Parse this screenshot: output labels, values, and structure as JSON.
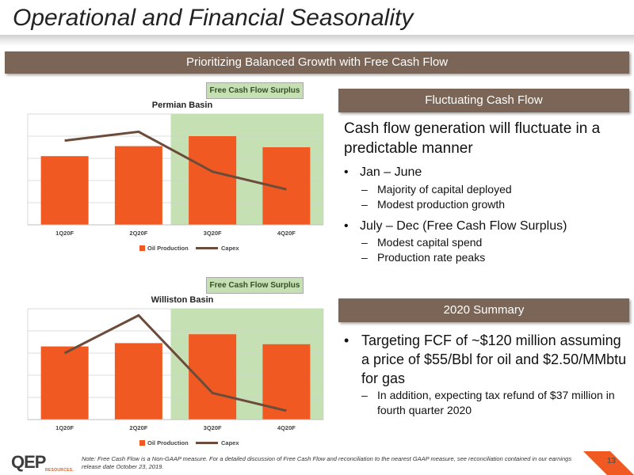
{
  "title": "Operational and Financial Seasonality",
  "banner": "Prioritizing Balanced Growth with Free Cash Flow",
  "chart_data": [
    {
      "type": "bar",
      "title": "Permian Basin",
      "categories": [
        "1Q20F",
        "2Q20F",
        "3Q20F",
        "4Q20F"
      ],
      "series": [
        {
          "name": "Oil Production",
          "type": "bar",
          "color": "#f05a22",
          "values": [
            62,
            71,
            80,
            70
          ]
        },
        {
          "name": "Capex",
          "type": "line",
          "color": "#6b4c3b",
          "values": [
            76,
            84,
            48,
            32
          ]
        }
      ],
      "shaded_label": "Free Cash Flow Surplus",
      "shaded_from_category": "3Q20F",
      "ylim": [
        0,
        100
      ],
      "grid": true,
      "legend": "bottom"
    },
    {
      "type": "bar",
      "title": "Williston Basin",
      "categories": [
        "1Q20F",
        "2Q20F",
        "3Q20F",
        "4Q20F"
      ],
      "series": [
        {
          "name": "Oil Production",
          "type": "bar",
          "color": "#f05a22",
          "values": [
            66,
            69,
            77,
            68
          ]
        },
        {
          "name": "Capex",
          "type": "line",
          "color": "#6b4c3b",
          "values": [
            60,
            94,
            24,
            8
          ]
        }
      ],
      "shaded_label": "Free Cash Flow Surplus",
      "shaded_from_category": "3Q20F",
      "ylim": [
        0,
        100
      ],
      "grid": true,
      "legend": "bottom"
    }
  ],
  "right": {
    "header1": "Fluctuating Cash Flow",
    "lead": "Cash flow generation will fluctuate in a predictable manner",
    "bullet1": "Jan – June",
    "bullet1_subs": [
      "Majority of capital deployed",
      "Modest production growth"
    ],
    "bullet2": "July – Dec (Free Cash Flow Surplus)",
    "bullet2_subs": [
      "Modest capital spend",
      "Production rate peaks"
    ],
    "header2": "2020 Summary",
    "summary_bullet": "Targeting FCF of ~$120 million assuming a price of $55/Bbl for oil and $2.50/MMbtu for gas",
    "summary_sub": "In addition, expecting tax refund of $37 million in fourth quarter 2020",
    "bullet_char": "•",
    "dash_char": "–"
  },
  "footer": {
    "logo_text": "QEP",
    "logo_sub": "RESOURCES.",
    "note": "Note: Free Cash Flow is a Non-GAAP measure. For a detailed discussion of Free Cash Flow and reconciliation to the nearest GAAP measure, see reconciliation contained in our earnings release date October 23, 2019.",
    "page": "13"
  },
  "colors": {
    "brown": "#7a6556",
    "orange": "#f05a22",
    "green_shade": "#c5e0b3",
    "line": "#6b4c3b"
  }
}
